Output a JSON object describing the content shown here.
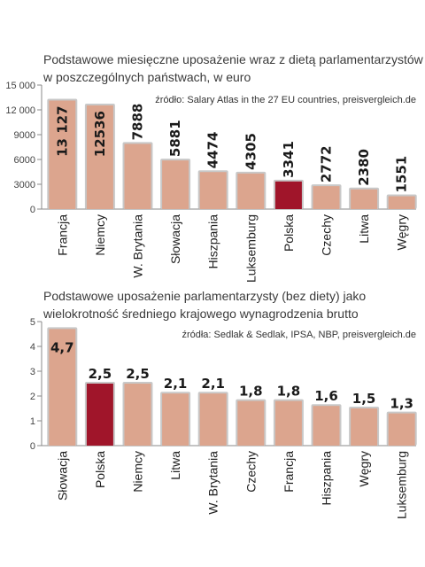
{
  "chart_data": [
    {
      "type": "bar",
      "title_lines": [
        "Podstawowe miesięczne uposażenie wraz z dietą parlamentarzystów",
        "w poszczególnych państwach, w euro"
      ],
      "source": "źródło: Salary Atlas in the 27 EU countries, preisvergleich.de",
      "categories": [
        "Francja",
        "Niemcy",
        "W. Brytania",
        "Słowacja",
        "Hiszpania",
        "Luksemburg",
        "Polska",
        "Czechy",
        "Litwa",
        "Węgry"
      ],
      "values": [
        13127,
        12536,
        7888,
        5881,
        4474,
        4305,
        3341,
        2772,
        2380,
        1551
      ],
      "value_labels": [
        "13 127",
        "12536",
        "7888",
        "5881",
        "4474",
        "4305",
        "3341",
        "2772",
        "2380",
        "1551"
      ],
      "ylim": [
        0,
        15000
      ],
      "yticks": [
        0,
        3000,
        6000,
        9000,
        12000,
        15000
      ],
      "ytick_labels": [
        "0",
        "3000",
        "6000",
        "9000",
        "12 000",
        "15 000"
      ],
      "highlight": "Polska",
      "colors": {
        "bar": "#dca58e",
        "highlight": "#a0152a",
        "frame": "#c8c8c8"
      }
    },
    {
      "type": "bar",
      "title_lines": [
        "Podstawowe uposażenie parlamentarzysty (bez diety) jako",
        "wielokrotność średniego krajowego wynagrodzenia brutto"
      ],
      "source": "źródła: Sedlak & Sedlak, IPSA, NBP, preisvergleich.de",
      "categories": [
        "Słowacja",
        "Polska",
        "Niemcy",
        "Litwa",
        "W. Brytania",
        "Czechy",
        "Francja",
        "Hiszpania",
        "Węgry",
        "Luksemburg"
      ],
      "values": [
        4.7,
        2.5,
        2.5,
        2.1,
        2.1,
        1.8,
        1.8,
        1.6,
        1.5,
        1.3
      ],
      "value_labels": [
        "4,7",
        "2,5",
        "2,5",
        "2,1",
        "2,1",
        "1,8",
        "1,8",
        "1,6",
        "1,5",
        "1,3"
      ],
      "ylim": [
        0,
        5
      ],
      "yticks": [
        0,
        1,
        2,
        3,
        4,
        5
      ],
      "ytick_labels": [
        "0",
        "1",
        "2",
        "3",
        "4",
        "5"
      ],
      "highlight": "Polska",
      "colors": {
        "bar": "#dca58e",
        "highlight": "#a0152a",
        "frame": "#c8c8c8"
      }
    }
  ]
}
